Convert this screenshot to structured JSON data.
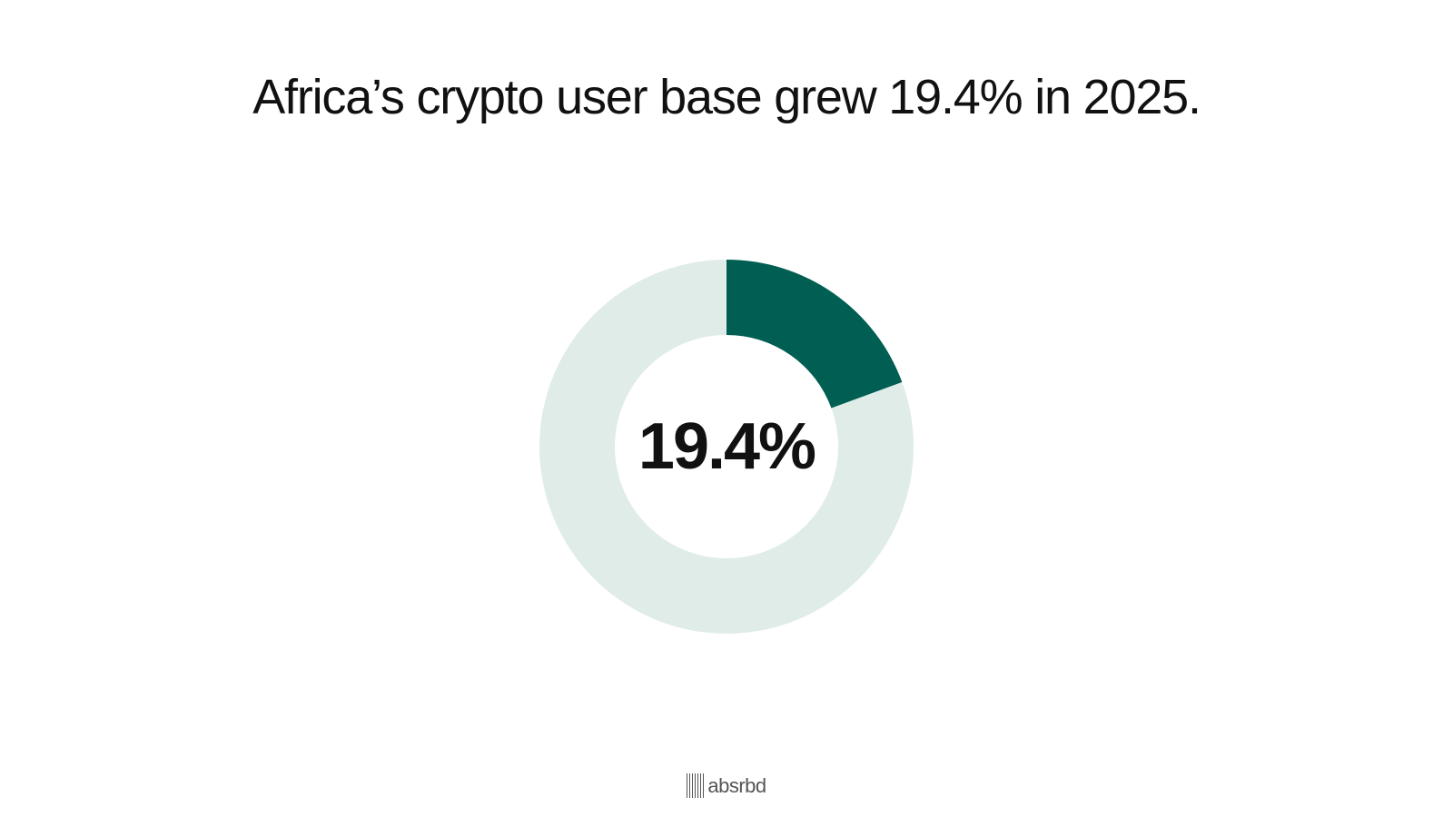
{
  "title": "Africa’s crypto user base grew 19.4% in 2025.",
  "chart_data": {
    "type": "pie",
    "variant": "donut",
    "center_label": "19.4%",
    "slices": [
      {
        "value": 19.4,
        "color": "#005f52"
      },
      {
        "value": 80.6,
        "color": "#e0ece8"
      }
    ]
  },
  "brand": {
    "name": "absrbd",
    "icon": "barcode-icon"
  }
}
